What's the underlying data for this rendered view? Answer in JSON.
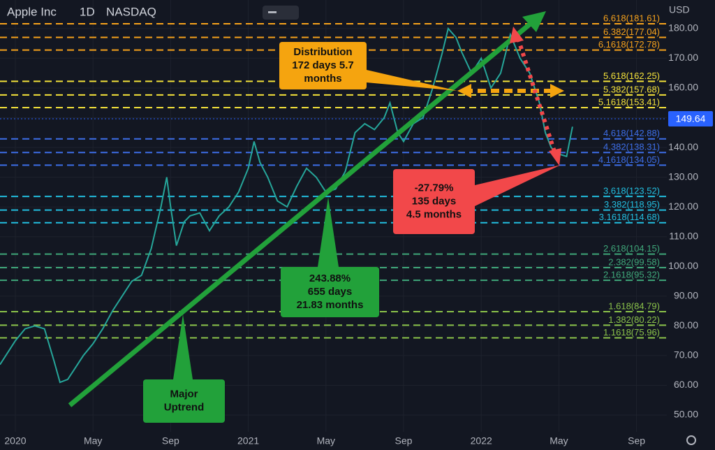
{
  "chart_data": {
    "type": "line",
    "symbol": "Apple Inc",
    "interval": "1D",
    "exchange": "NASDAQ",
    "currency": "USD",
    "xlim": [
      -0.79,
      33.56
    ],
    "xticks": [
      {
        "value": 0,
        "label": "2020"
      },
      {
        "value": 4,
        "label": "May"
      },
      {
        "value": 8,
        "label": "Sep"
      },
      {
        "value": 12,
        "label": "2021"
      },
      {
        "value": 16,
        "label": "May"
      },
      {
        "value": 20,
        "label": "Sep"
      },
      {
        "value": 24,
        "label": "2022"
      },
      {
        "value": 28,
        "label": "May"
      },
      {
        "value": 32,
        "label": "Sep"
      }
    ],
    "ylim": [
      44.36,
      189.6
    ],
    "yticks": [
      {
        "value": 50,
        "label": "50.00"
      },
      {
        "value": 60,
        "label": "60.00"
      },
      {
        "value": 70,
        "label": "70.00"
      },
      {
        "value": 80,
        "label": "80.00"
      },
      {
        "value": 90,
        "label": "90.00"
      },
      {
        "value": 100,
        "label": "100.00"
      },
      {
        "value": 110,
        "label": "110.00"
      },
      {
        "value": 120,
        "label": "120.00"
      },
      {
        "value": 130,
        "label": "130.00"
      },
      {
        "value": 140,
        "label": "140.00"
      },
      {
        "value": 150,
        "label": "150.00"
      },
      {
        "value": 160,
        "label": "160.00"
      },
      {
        "value": 170,
        "label": "170.00"
      },
      {
        "value": 180,
        "label": "180.00"
      }
    ],
    "grid": true,
    "series": [
      {
        "name": "Apple Inc",
        "color": "#26a69a",
        "x": [
          -0.79,
          0,
          0.5,
          1,
          1.5,
          2,
          2.3,
          2.7,
          3,
          3.5,
          4,
          4.5,
          5,
          5.5,
          6,
          6.5,
          7,
          7.5,
          7.8,
          8,
          8.3,
          8.7,
          9,
          9.5,
          10,
          10.5,
          11,
          11.5,
          12,
          12.3,
          12.6,
          13,
          13.5,
          14,
          14.5,
          15,
          15.5,
          16,
          16.5,
          17,
          17.5,
          18,
          18.5,
          19,
          19.3,
          19.7,
          20,
          20.5,
          21,
          21.5,
          22,
          22.3,
          22.7,
          23,
          23.5,
          24,
          24.5,
          25,
          25.5,
          26,
          26.5,
          27,
          27.3,
          27.6,
          27.9,
          28.4,
          28.7
        ],
        "values": [
          67,
          75,
          79,
          80,
          79,
          68,
          61,
          62,
          65,
          70,
          74,
          79,
          85,
          90,
          95,
          97,
          106,
          120,
          130,
          120,
          107,
          115,
          117,
          118,
          112,
          117,
          120,
          125,
          133,
          142,
          135,
          130,
          122,
          120,
          127,
          133,
          130,
          125,
          126,
          132,
          145,
          148,
          146,
          150,
          155,
          145,
          142,
          148,
          150,
          160,
          172,
          180,
          177,
          172,
          165,
          170,
          160,
          165,
          178,
          170,
          165,
          155,
          145,
          140,
          138,
          137,
          147
        ]
      }
    ],
    "last_price": {
      "value": 149.64,
      "label": "149.64",
      "color": "#2962ff"
    },
    "fib_levels": [
      {
        "label": "6.618(181.61)",
        "value": 181.61,
        "color": "#f7a21b"
      },
      {
        "label": "6.382(177.04)",
        "value": 177.04,
        "color": "#f7a21b"
      },
      {
        "label": "6.1618(172.78)",
        "value": 172.78,
        "color": "#f7a21b"
      },
      {
        "label": "5.618(162.25)",
        "value": 162.25,
        "color": "#f5e33a"
      },
      {
        "label": "5.382(157.68)",
        "value": 157.68,
        "color": "#f5e33a"
      },
      {
        "label": "5.1618(153.41)",
        "value": 153.41,
        "color": "#f5e33a"
      },
      {
        "label": "4.618(142.88)",
        "value": 142.88,
        "color": "#3d6ee8"
      },
      {
        "label": "4.382(138.31)",
        "value": 138.31,
        "color": "#3d6ee8"
      },
      {
        "label": "4.1618(134.05)",
        "value": 134.05,
        "color": "#3d6ee8"
      },
      {
        "label": "3.618(123.52)",
        "value": 123.52,
        "color": "#22bfe0"
      },
      {
        "label": "3.382(118.95)",
        "value": 118.95,
        "color": "#22bfe0"
      },
      {
        "label": "3.1618(114.68)",
        "value": 114.68,
        "color": "#22bfe0"
      },
      {
        "label": "2.618(104.15)",
        "value": 104.15,
        "color": "#3fa87a"
      },
      {
        "label": "2.382(99.58)",
        "value": 99.58,
        "color": "#3fa87a"
      },
      {
        "label": "2.1618(95.32)",
        "value": 95.32,
        "color": "#3fa87a"
      },
      {
        "label": "1.618(84.79)",
        "value": 84.79,
        "color": "#8bc34a"
      },
      {
        "label": "1.382(80.22)",
        "value": 80.22,
        "color": "#8bc34a"
      },
      {
        "label": "1.1618(75.96)",
        "value": 75.96,
        "color": "#8bc34a"
      }
    ],
    "annotations": [
      {
        "lines": [
          "Distribution",
          "172 days 5.7",
          "months"
        ],
        "color": "#f5a40f"
      },
      {
        "lines": [
          "243.88%",
          "655 days",
          "21.83 months"
        ],
        "color": "#22a13a"
      },
      {
        "lines": [
          "-27.79%",
          "135 days",
          "4.5 months"
        ],
        "color": "#f2484a"
      },
      {
        "lines": [
          "Major",
          "Uptrend"
        ],
        "color": "#22a13a"
      }
    ]
  }
}
